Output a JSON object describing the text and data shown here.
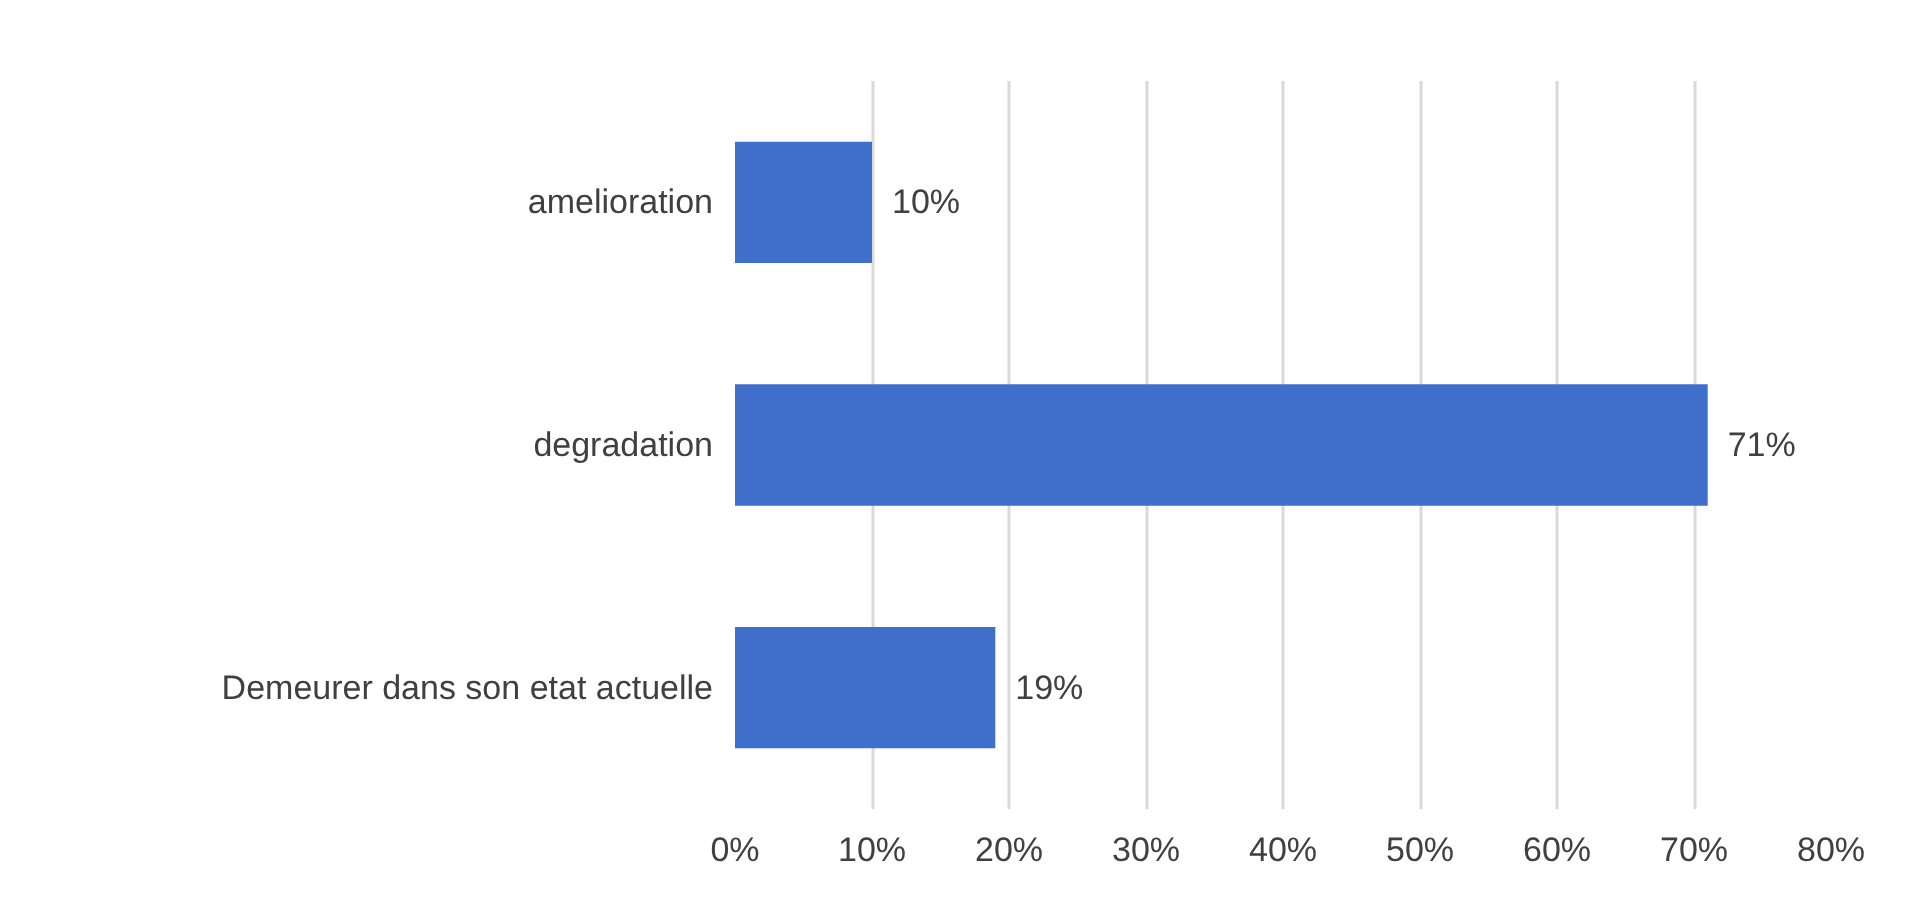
{
  "chart_data": {
    "type": "bar",
    "orientation": "horizontal",
    "categories": [
      "amelioration",
      "degradation",
      "Demeurer dans son etat actuelle"
    ],
    "values": [
      10,
      71,
      19
    ],
    "value_labels": [
      "10%",
      "71%",
      "19%"
    ],
    "color": "#3f6fcb",
    "xlim": [
      0,
      80
    ],
    "xticks": [
      {
        "value": 0,
        "label": "0%"
      },
      {
        "value": 10,
        "label": "10%"
      },
      {
        "value": 20,
        "label": "20%"
      },
      {
        "value": 30,
        "label": "30%"
      },
      {
        "value": 40,
        "label": "40%"
      },
      {
        "value": 50,
        "label": "50%"
      },
      {
        "value": 60,
        "label": "60%"
      },
      {
        "value": 70,
        "label": "70%"
      },
      {
        "value": 80,
        "label": "80%"
      }
    ],
    "grid": "x"
  }
}
